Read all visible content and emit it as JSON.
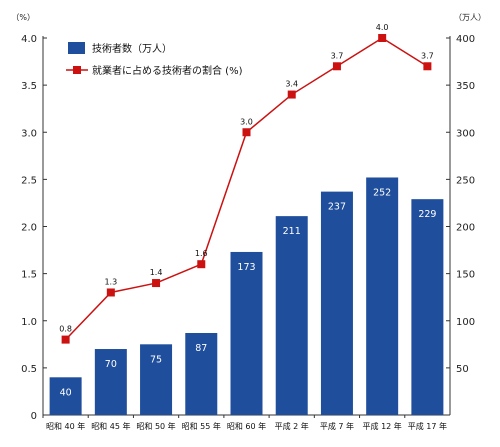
{
  "chart_data": {
    "type": "bar",
    "categories": [
      "昭和 40 年",
      "昭和 45 年",
      "昭和 50 年",
      "昭和 55 年",
      "昭和 60 年",
      "平成 2 年",
      "平成 7 年",
      "平成 12 年",
      "平成 17 年"
    ],
    "series": [
      {
        "name": "技術者数（万人）",
        "type": "bar",
        "axis": "right",
        "values": [
          40,
          70,
          75,
          87,
          173,
          211,
          237,
          252,
          229
        ],
        "color": "#1f4e9c"
      },
      {
        "name": "就業者に占める技術者の割合 (%)",
        "type": "line",
        "axis": "left",
        "values": [
          0.8,
          1.3,
          1.4,
          1.6,
          3.0,
          3.4,
          3.7,
          4.0,
          3.7
        ],
        "color": "#cc1111"
      }
    ],
    "left_axis": {
      "unit": "（%）",
      "ylim": [
        0,
        4.0
      ],
      "ticks": [
        "0",
        "0.5",
        "1.0",
        "1.5",
        "2.0",
        "2.5",
        "3.0",
        "3.5",
        "4.0"
      ]
    },
    "right_axis": {
      "unit": "（万人）",
      "ylim": [
        0,
        400
      ],
      "ticks": [
        "50",
        "100",
        "150",
        "200",
        "250",
        "300",
        "350",
        "400"
      ]
    },
    "legend_position": "top-left",
    "grid": false
  }
}
